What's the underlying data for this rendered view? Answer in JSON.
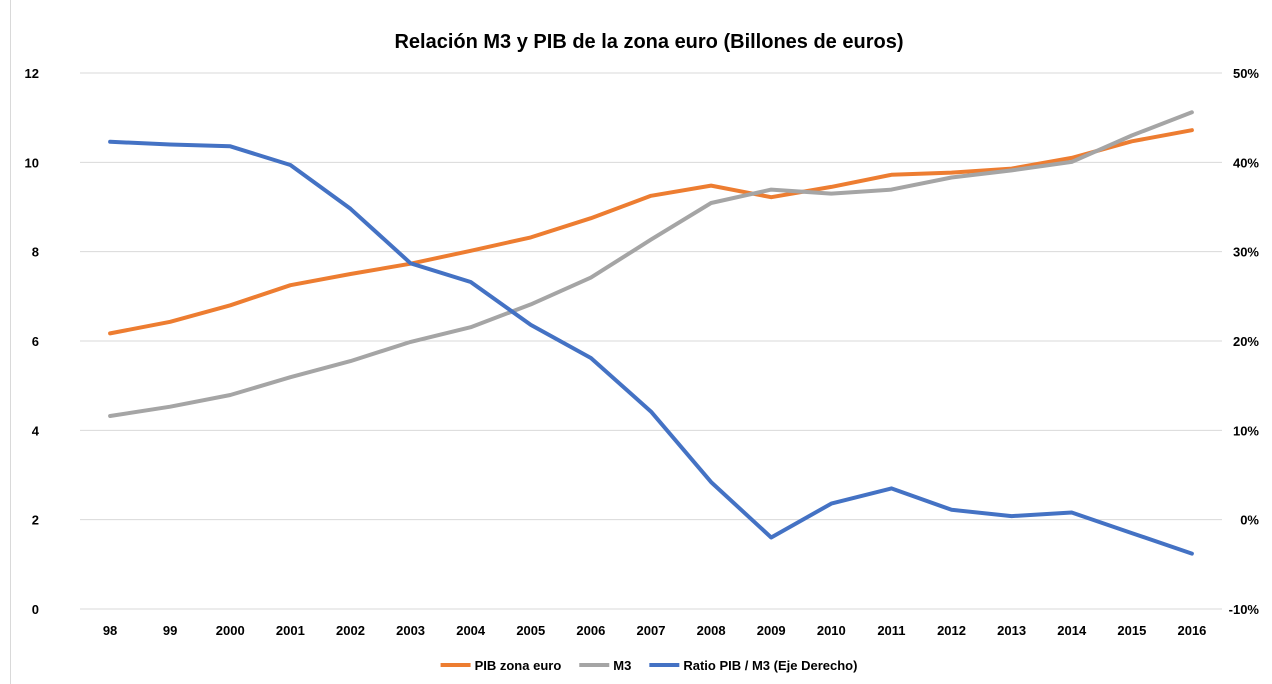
{
  "chart_data": {
    "type": "line",
    "title": "Relación M3 y PIB de la zona euro (Billones de euros)",
    "categories": [
      "98",
      "99",
      "2000",
      "2001",
      "2002",
      "2003",
      "2004",
      "2005",
      "2006",
      "2007",
      "2008",
      "2009",
      "2010",
      "2011",
      "2012",
      "2013",
      "2014",
      "2015",
      "2016"
    ],
    "y_left": {
      "ylim": [
        0,
        12
      ],
      "ticks": [
        "0",
        "2",
        "4",
        "6",
        "8",
        "10",
        "12"
      ]
    },
    "y_right": {
      "ylim": [
        -0.1,
        0.5
      ],
      "ticks": [
        "-10%",
        "0%",
        "10%",
        "20%",
        "30%",
        "40%",
        "50%"
      ]
    },
    "grid": true,
    "legend_position": "bottom",
    "series": [
      {
        "name": "PIB zona euro",
        "axis": "left",
        "color": "#ED7D31",
        "values": [
          6.17,
          6.43,
          6.8,
          7.25,
          7.5,
          7.73,
          8.02,
          8.32,
          8.75,
          9.25,
          9.48,
          9.22,
          9.45,
          9.72,
          9.77,
          9.86,
          10.1,
          10.47,
          10.72
        ]
      },
      {
        "name": "M3",
        "axis": "left",
        "color": "#A5A5A5",
        "values": [
          4.32,
          4.53,
          4.79,
          5.19,
          5.55,
          5.98,
          6.31,
          6.82,
          7.42,
          8.27,
          9.09,
          9.39,
          9.3,
          9.39,
          9.66,
          9.82,
          10.01,
          10.6,
          11.12
        ]
      },
      {
        "name": "Ratio PIB / M3 (Eje Derecho)",
        "axis": "right",
        "color": "#4472C4",
        "values": [
          0.423,
          0.42,
          0.418,
          0.397,
          0.348,
          0.287,
          0.266,
          0.218,
          0.181,
          0.121,
          0.042,
          -0.02,
          0.018,
          0.035,
          0.011,
          0.004,
          0.008,
          -0.015,
          -0.038
        ]
      }
    ]
  }
}
